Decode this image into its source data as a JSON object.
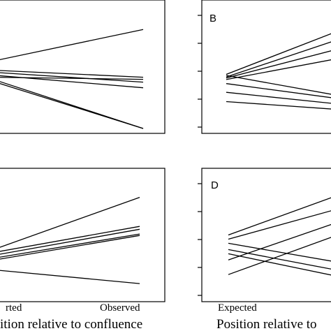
{
  "chart_data": [
    {
      "type": "line",
      "panel": "",
      "categories": [
        "",
        ""
      ],
      "xlabel": "",
      "series": [
        {
          "values": [
            0.33,
            0.78
          ]
        },
        {
          "values": [
            0.2,
            0.1
          ]
        },
        {
          "values": [
            0.17,
            0.03
          ]
        },
        {
          "values": [
            0.07,
            -0.63
          ]
        },
        {
          "values": [
            0.04,
            -0.63
          ]
        },
        {
          "values": [
            0.13,
            -0.05
          ]
        },
        {
          "values": [
            0.1,
            0.07
          ]
        }
      ],
      "ylim": [
        -0.7,
        1.2
      ]
    },
    {
      "type": "line",
      "panel": "B",
      "categories": [
        "",
        ""
      ],
      "xlabel": "",
      "series": [
        {
          "values": [
            0.15,
            1.08
          ]
        },
        {
          "values": [
            0.1,
            0.9
          ]
        },
        {
          "values": [
            0.08,
            0.7
          ]
        },
        {
          "values": [
            0.05,
            0.5
          ]
        },
        {
          "values": [
            0.13,
            -0.3
          ]
        },
        {
          "values": [
            -0.03,
            -0.35
          ]
        },
        {
          "values": [
            -0.2,
            -0.45
          ]
        },
        {
          "values": [
            -0.38,
            -0.55
          ]
        }
      ],
      "ylim": [
        -1.0,
        1.6
      ]
    },
    {
      "type": "line",
      "panel": "",
      "categories": [
        "rted",
        "Observed"
      ],
      "xlabel": "ition relative to confluence",
      "series": [
        {
          "values": [
            0.09,
            1.19
          ]
        },
        {
          "values": [
            0.03,
            0.58
          ]
        },
        {
          "values": [
            -0.03,
            0.52
          ]
        },
        {
          "values": [
            -0.09,
            0.42
          ]
        },
        {
          "values": [
            -0.13,
            0.39
          ]
        },
        {
          "values": [
            -0.33,
            -0.62
          ]
        }
      ],
      "ylim": [
        -1.0,
        1.8
      ]
    },
    {
      "type": "line",
      "panel": "D",
      "categories": [
        "Expected",
        ""
      ],
      "xlabel": "Position relative to",
      "series": [
        {
          "values": [
            0.8,
            1.85
          ]
        },
        {
          "values": [
            0.7,
            1.5
          ]
        },
        {
          "values": [
            0.6,
            0.1
          ]
        },
        {
          "values": [
            0.45,
            -0.1
          ]
        },
        {
          "values": [
            0.35,
            -0.25
          ]
        },
        {
          "values": [
            0.2,
            1.2
          ]
        },
        {
          "values": [
            -0.15,
            0.9
          ]
        }
      ],
      "ylim": [
        -0.8,
        2.4
      ]
    }
  ]
}
